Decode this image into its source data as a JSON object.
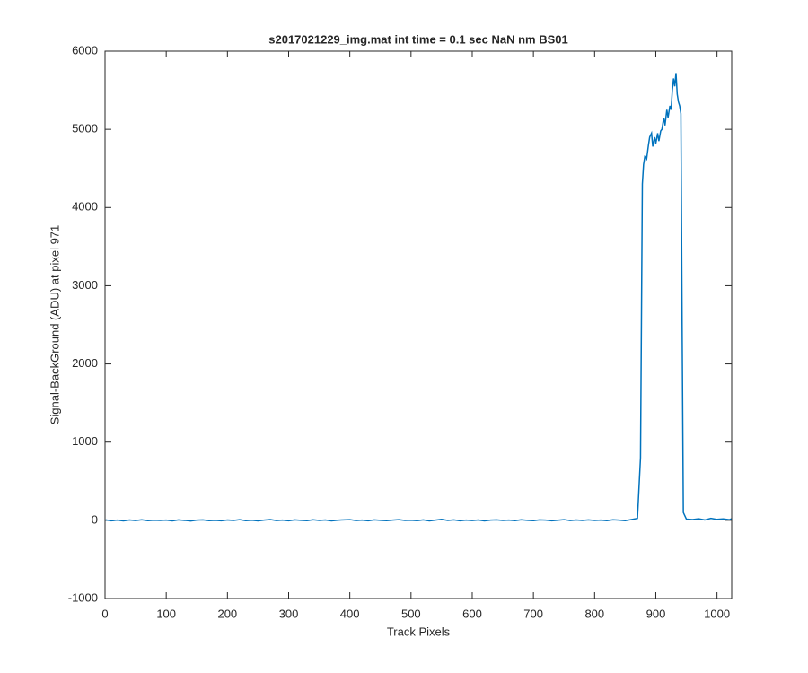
{
  "chart_data": {
    "type": "line",
    "title": "s2017021229_img.mat int time = 0.1 sec  NaN nm BS01",
    "x_label": "Track Pixels",
    "y_label": "Signal-BackGround (ADU) at pixel 971",
    "xlim": [
      0,
      1024
    ],
    "ylim": [
      -1000,
      6000
    ],
    "xticks": [
      0,
      100,
      200,
      300,
      400,
      500,
      600,
      700,
      800,
      900,
      1000
    ],
    "yticks": [
      -1000,
      0,
      1000,
      2000,
      3000,
      4000,
      5000,
      6000
    ],
    "x": [
      1,
      10,
      20,
      30,
      40,
      50,
      60,
      70,
      80,
      90,
      100,
      110,
      120,
      130,
      140,
      150,
      160,
      170,
      180,
      190,
      200,
      210,
      220,
      230,
      240,
      250,
      260,
      270,
      280,
      290,
      300,
      310,
      320,
      330,
      340,
      350,
      360,
      370,
      380,
      390,
      400,
      410,
      420,
      430,
      440,
      450,
      460,
      470,
      480,
      490,
      500,
      510,
      520,
      530,
      540,
      550,
      560,
      570,
      580,
      590,
      600,
      610,
      620,
      630,
      640,
      650,
      660,
      670,
      680,
      690,
      700,
      710,
      720,
      730,
      740,
      750,
      760,
      770,
      780,
      790,
      800,
      810,
      820,
      830,
      840,
      850,
      860,
      870,
      875,
      878,
      880,
      882,
      885,
      888,
      890,
      893,
      895,
      898,
      900,
      903,
      905,
      908,
      910,
      913,
      915,
      918,
      920,
      923,
      925,
      927,
      929,
      931,
      933,
      935,
      937,
      939,
      941,
      943,
      945,
      950,
      960,
      970,
      980,
      990,
      1000,
      1010,
      1020,
      1024
    ],
    "series": [
      {
        "color": "#0072bd",
        "values": [
          5,
          -6,
          2,
          -8,
          4,
          -3,
          7,
          -5,
          1,
          -2,
          3,
          -7,
          5,
          -1,
          -9,
          2,
          6,
          -4,
          0,
          -6,
          4,
          -2,
          8,
          -5,
          1,
          -8,
          3,
          10,
          -3,
          2,
          -6,
          5,
          0,
          -4,
          7,
          -2,
          4,
          -7,
          1,
          6,
          9,
          -3,
          2,
          -6,
          5,
          0,
          -5,
          3,
          8,
          -2,
          1,
          -4,
          6,
          -8,
          3,
          12,
          -1,
          5,
          -6,
          2,
          -3,
          4,
          -7,
          2,
          6,
          -1,
          3,
          -5,
          7,
          0,
          -4,
          5,
          2,
          -6,
          1,
          9,
          -3,
          4,
          -2,
          6,
          -1,
          3,
          -5,
          7,
          2,
          -4,
          10,
          25,
          800,
          4300,
          4550,
          4650,
          4620,
          4800,
          4900,
          4950,
          4780,
          4900,
          4820,
          4950,
          4850,
          4980,
          5000,
          5150,
          5050,
          5250,
          5150,
          5300,
          5250,
          5500,
          5650,
          5550,
          5720,
          5450,
          5350,
          5300,
          5200,
          2500,
          100,
          15,
          10,
          20,
          5,
          25,
          12,
          18,
          8,
          20
        ]
      }
    ]
  }
}
